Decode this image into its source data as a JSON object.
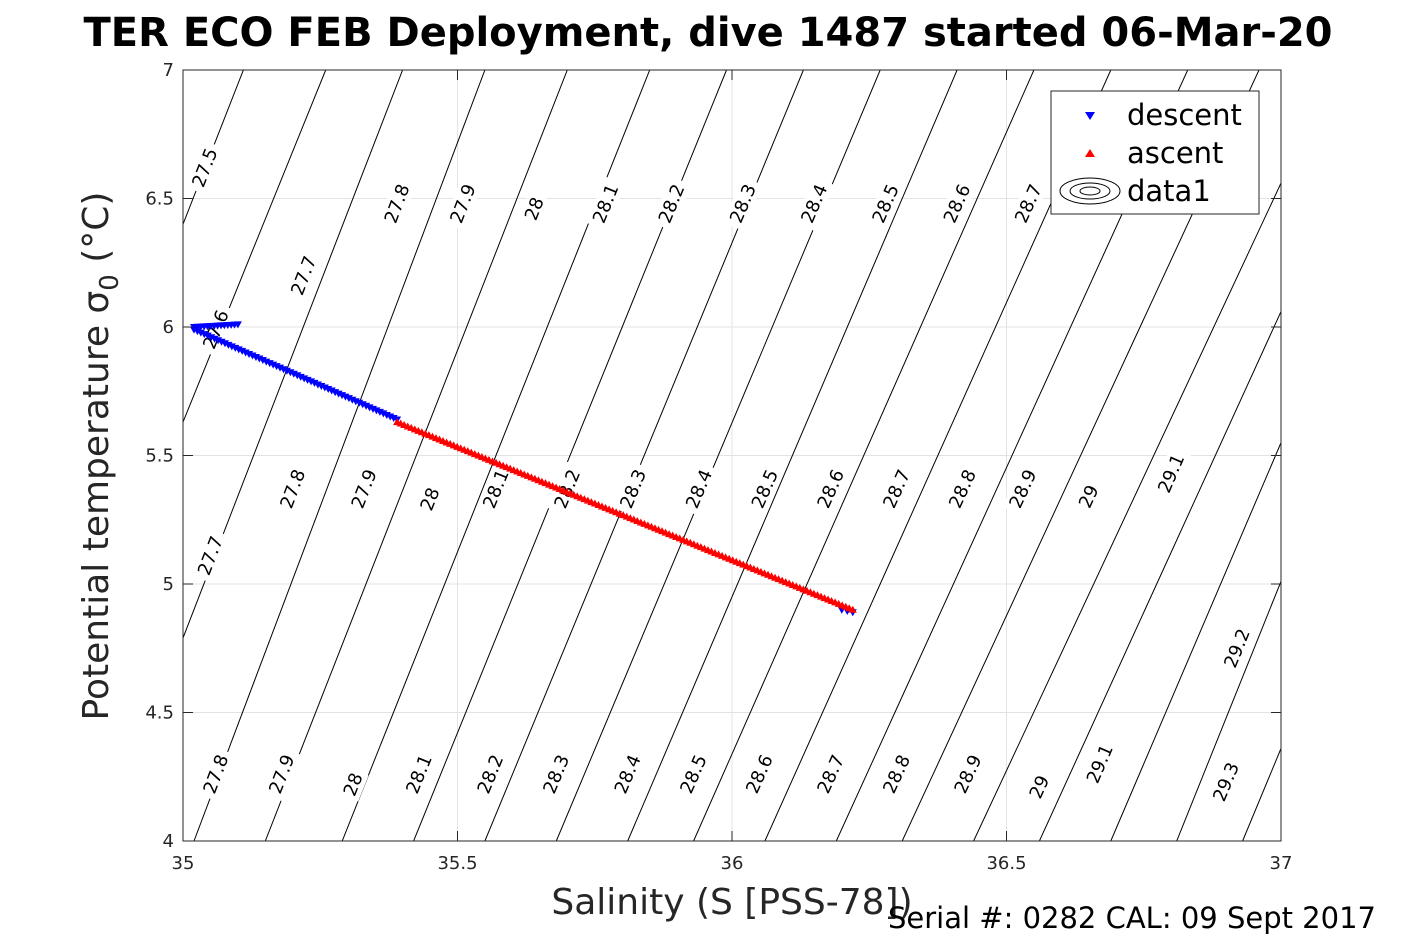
{
  "chart_data": {
    "type": "scatter",
    "title": "TER ECO FEB Deployment, dive 1487 started 06-Mar-20",
    "xlabel": "Salinity (S [PSS-78])",
    "ylabel_main": "Potential temperature σ",
    "ylabel_sub": "0",
    "ylabel_unit": " (°C)",
    "xlim": [
      35,
      37
    ],
    "ylim": [
      4,
      7
    ],
    "x_ticks": [
      "35",
      "35.5",
      "36",
      "36.5",
      "37"
    ],
    "y_ticks": [
      "4",
      "4.5",
      "5",
      "5.5",
      "6",
      "6.5",
      "7"
    ],
    "grid": true,
    "legend_position": "top-right",
    "footer": "Serial #: 0282  CAL: 09 Sept 2017",
    "series": [
      {
        "name": "descent",
        "marker": "triangle-down",
        "color": "#0000ff",
        "segments": [
          {
            "from": [
              35.02,
              6.0
            ],
            "to": [
              35.1,
              6.01
            ],
            "count": 14
          },
          {
            "from": [
              35.02,
              5.99
            ],
            "to": [
              35.39,
              5.64
            ],
            "count": 60
          },
          {
            "from": [
              36.2,
              4.9
            ],
            "to": [
              36.22,
              4.89
            ],
            "count": 3
          }
        ]
      },
      {
        "name": "ascent",
        "marker": "triangle-up",
        "color": "#ff0000",
        "segments": [
          {
            "from": [
              35.39,
              5.63
            ],
            "to": [
              36.22,
              4.9
            ],
            "count": 130
          }
        ]
      },
      {
        "name": "data1",
        "marker": "contour-ellipses",
        "color": "#000000",
        "segments": []
      }
    ],
    "contours": [
      {
        "level": "27.5",
        "points": [
          [
            35.0,
            6.4
          ],
          [
            35.11,
            7.0
          ]
        ],
        "label_at": [
          35.04,
          6.62
        ]
      },
      {
        "level": "27.6",
        "points": [
          [
            35.0,
            5.63
          ],
          [
            35.26,
            7.0
          ]
        ],
        "label_at": [
          35.06,
          5.99
        ]
      },
      {
        "level": "27.7",
        "points": [
          [
            35.0,
            4.79
          ],
          [
            35.4,
            7.0
          ]
        ],
        "label_at": [
          35.05,
          5.11
        ]
      },
      {
        "level": "27.8",
        "points": [
          [
            35.02,
            4.0
          ],
          [
            35.55,
            7.0
          ]
        ],
        "label_at": [
          35.06,
          4.26
        ]
      },
      {
        "level": "27.9",
        "points": [
          [
            35.15,
            4.0
          ],
          [
            35.7,
            7.0
          ]
        ],
        "label_at": [
          35.18,
          4.26
        ]
      },
      {
        "level": "28",
        "points": [
          [
            35.29,
            4.0
          ],
          [
            35.85,
            7.0
          ]
        ],
        "label_at": [
          35.31,
          4.22
        ]
      },
      {
        "level": "28.1",
        "points": [
          [
            35.42,
            4.0
          ],
          [
            35.99,
            7.0
          ]
        ],
        "label_at": [
          35.43,
          4.26
        ]
      },
      {
        "level": "28.2",
        "points": [
          [
            35.55,
            4.0
          ],
          [
            36.13,
            7.0
          ]
        ],
        "label_at": [
          35.56,
          4.26
        ]
      },
      {
        "level": "28.3",
        "points": [
          [
            35.68,
            4.0
          ],
          [
            36.27,
            7.0
          ]
        ],
        "label_at": [
          35.68,
          4.26
        ]
      },
      {
        "level": "28.4",
        "points": [
          [
            35.81,
            4.0
          ],
          [
            36.41,
            7.0
          ]
        ],
        "label_at": [
          35.81,
          4.26
        ]
      },
      {
        "level": "28.5",
        "points": [
          [
            35.93,
            4.0
          ],
          [
            36.55,
            7.0
          ]
        ],
        "label_at": [
          35.93,
          4.26
        ]
      },
      {
        "level": "28.6",
        "points": [
          [
            36.06,
            4.0
          ],
          [
            36.69,
            7.0
          ]
        ],
        "label_at": [
          36.05,
          4.26
        ]
      },
      {
        "level": "28.7",
        "points": [
          [
            36.19,
            4.0
          ],
          [
            36.83,
            7.0
          ]
        ],
        "label_at": [
          36.18,
          4.26
        ]
      },
      {
        "level": "28.8",
        "points": [
          [
            36.31,
            4.0
          ],
          [
            36.96,
            7.0
          ]
        ],
        "label_at": [
          36.3,
          4.26
        ]
      },
      {
        "level": "28.9",
        "points": [
          [
            36.44,
            4.0
          ],
          [
            37.0,
            6.56
          ]
        ],
        "label_at": [
          36.43,
          4.26
        ]
      },
      {
        "level": "29",
        "points": [
          [
            36.56,
            4.0
          ],
          [
            37.0,
            6.06
          ]
        ],
        "label_at": [
          36.56,
          4.21
        ]
      },
      {
        "level": "29.1",
        "points": [
          [
            36.69,
            4.0
          ],
          [
            37.0,
            5.55
          ]
        ],
        "label_at": [
          36.67,
          4.3
        ]
      },
      {
        "level": "29.2",
        "points": [
          [
            36.81,
            4.0
          ],
          [
            37.0,
            5.01
          ]
        ],
        "label_at": [
          36.92,
          4.75
        ]
      },
      {
        "level": "29.3",
        "points": [
          [
            36.93,
            4.0
          ],
          [
            37.0,
            4.36
          ]
        ],
        "label_at": [
          36.9,
          4.23
        ]
      }
    ],
    "extra_contour_labels": [
      {
        "level": "27.7",
        "at": [
          35.22,
          6.2
        ]
      },
      {
        "level": "27.8",
        "at": [
          35.39,
          6.48
        ]
      },
      {
        "level": "27.9",
        "at": [
          35.51,
          6.48
        ]
      },
      {
        "level": "28",
        "at": [
          35.64,
          6.46
        ]
      },
      {
        "level": "28.1",
        "at": [
          35.77,
          6.48
        ]
      },
      {
        "level": "28.2",
        "at": [
          35.89,
          6.48
        ]
      },
      {
        "level": "28.3",
        "at": [
          36.02,
          6.48
        ]
      },
      {
        "level": "28.4",
        "at": [
          36.15,
          6.48
        ]
      },
      {
        "level": "28.5",
        "at": [
          36.28,
          6.48
        ]
      },
      {
        "level": "28.6",
        "at": [
          36.41,
          6.48
        ]
      },
      {
        "level": "28.7",
        "at": [
          36.54,
          6.48
        ]
      },
      {
        "level": "27.8",
        "at": [
          35.2,
          5.37
        ]
      },
      {
        "level": "27.9",
        "at": [
          35.33,
          5.37
        ]
      },
      {
        "level": "28",
        "at": [
          35.45,
          5.33
        ]
      },
      {
        "level": "28.1",
        "at": [
          35.57,
          5.37
        ]
      },
      {
        "level": "28.2",
        "at": [
          35.7,
          5.37
        ]
      },
      {
        "level": "28.3",
        "at": [
          35.82,
          5.37
        ]
      },
      {
        "level": "28.4",
        "at": [
          35.94,
          5.37
        ]
      },
      {
        "level": "28.5",
        "at": [
          36.06,
          5.37
        ]
      },
      {
        "level": "28.6",
        "at": [
          36.18,
          5.37
        ]
      },
      {
        "level": "28.7",
        "at": [
          36.3,
          5.37
        ]
      },
      {
        "level": "28.8",
        "at": [
          36.42,
          5.37
        ]
      },
      {
        "level": "28.9",
        "at": [
          36.53,
          5.37
        ]
      },
      {
        "level": "29",
        "at": [
          36.65,
          5.34
        ]
      },
      {
        "level": "29.1",
        "at": [
          36.8,
          5.43
        ]
      }
    ]
  }
}
